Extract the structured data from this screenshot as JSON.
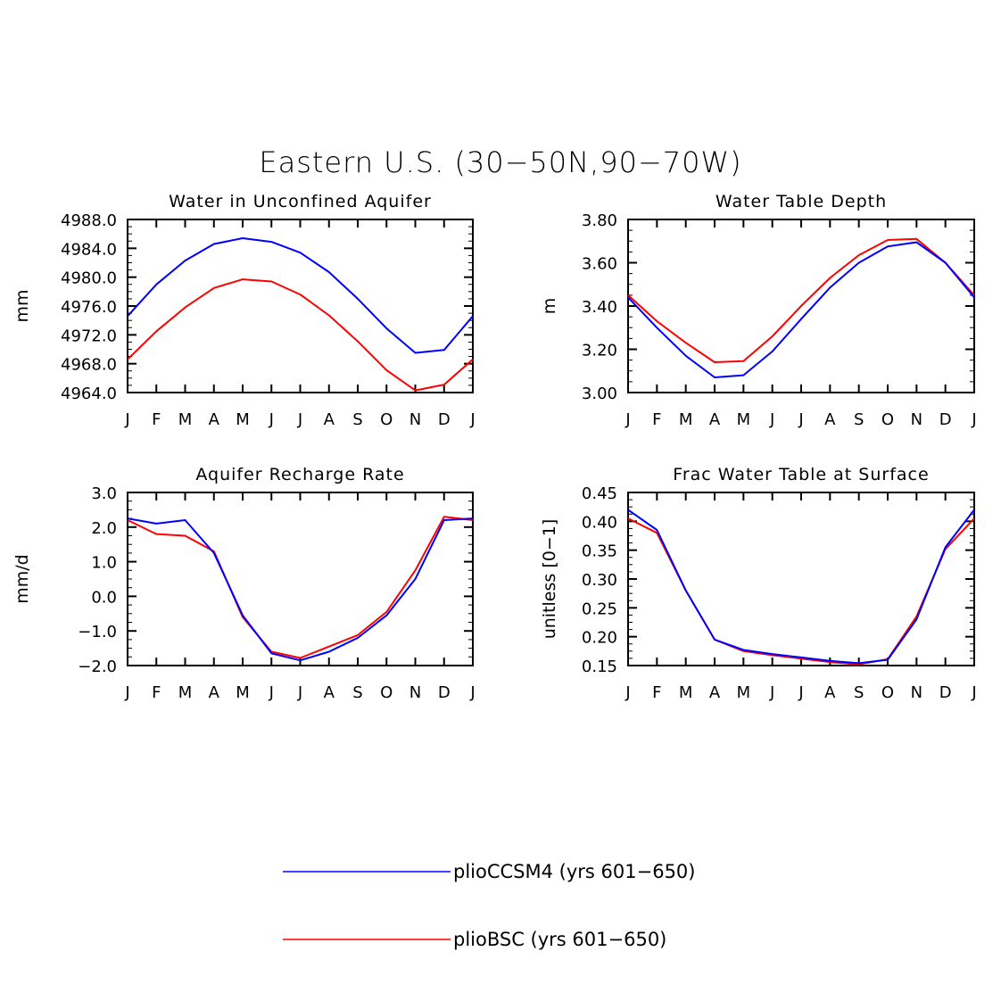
{
  "figure_title": "Eastern U.S. (30−50N,90−70W)",
  "colors": {
    "pliocCSM4": "#0000ff",
    "plioBSC": "#ff0000",
    "axes": "#000000"
  },
  "legend": [
    {
      "label": "plioCCSM4 (yrs 601−650)",
      "color": "#0000ff"
    },
    {
      "label": "plioBSC (yrs 601−650)",
      "color": "#ff0000"
    }
  ],
  "chart_data": [
    {
      "type": "line",
      "title": "Water in Unconfined Aquifer",
      "xlabel": "",
      "ylabel": "mm",
      "categories": [
        "J",
        "F",
        "M",
        "A",
        "M",
        "J",
        "J",
        "A",
        "S",
        "O",
        "N",
        "D",
        "J"
      ],
      "ylim": [
        4964.0,
        4988.0
      ],
      "yticks": [
        "4964.0",
        "4968.0",
        "4972.0",
        "4976.0",
        "4980.0",
        "4984.0",
        "4988.0"
      ],
      "ytick_values": [
        4964,
        4968,
        4972,
        4976,
        4980,
        4984,
        4988
      ],
      "series": [
        {
          "name": "plioCCSM4 (yrs 601−650)",
          "color": "#0000ff",
          "values": [
            4974.6,
            4979.0,
            4982.3,
            4984.6,
            4985.4,
            4984.9,
            4983.4,
            4980.7,
            4977.0,
            4972.9,
            4969.5,
            4969.9,
            4974.6
          ]
        },
        {
          "name": "plioBSC (yrs 601−650)",
          "color": "#ff0000",
          "values": [
            4968.6,
            4972.5,
            4975.8,
            4978.5,
            4979.7,
            4979.4,
            4977.6,
            4974.7,
            4971.1,
            4967.1,
            4964.3,
            4965.1,
            4968.6
          ]
        }
      ]
    },
    {
      "type": "line",
      "title": "Water Table Depth",
      "xlabel": "",
      "ylabel": "m",
      "categories": [
        "J",
        "F",
        "M",
        "A",
        "M",
        "J",
        "J",
        "A",
        "S",
        "O",
        "N",
        "D",
        "J"
      ],
      "ylim": [
        3.0,
        3.8
      ],
      "yticks": [
        "3.00",
        "3.20",
        "3.40",
        "3.60",
        "3.80"
      ],
      "ytick_values": [
        3.0,
        3.2,
        3.4,
        3.6,
        3.8
      ],
      "series": [
        {
          "name": "plioCCSM4 (yrs 601−650)",
          "color": "#0000ff",
          "values": [
            3.44,
            3.3,
            3.17,
            3.07,
            3.08,
            3.19,
            3.34,
            3.485,
            3.6,
            3.675,
            3.695,
            3.6,
            3.44
          ]
        },
        {
          "name": "plioBSC (yrs 601−650)",
          "color": "#ff0000",
          "values": [
            3.45,
            3.33,
            3.23,
            3.14,
            3.145,
            3.26,
            3.4,
            3.53,
            3.635,
            3.705,
            3.71,
            3.6,
            3.45
          ]
        }
      ]
    },
    {
      "type": "line",
      "title": "Aquifer Recharge Rate",
      "xlabel": "",
      "ylabel": "mm/d",
      "categories": [
        "J",
        "F",
        "M",
        "A",
        "M",
        "J",
        "J",
        "A",
        "S",
        "O",
        "N",
        "D",
        "J"
      ],
      "ylim": [
        -2.0,
        3.0
      ],
      "yticks": [
        "−2.0",
        "−1.0",
        "0.0",
        "1.0",
        "2.0",
        "3.0"
      ],
      "ytick_values": [
        -2,
        -1,
        0,
        1,
        2,
        3
      ],
      "series": [
        {
          "name": "plioCCSM4 (yrs 601−650)",
          "color": "#0000ff",
          "values": [
            2.25,
            2.1,
            2.2,
            1.25,
            -0.55,
            -1.65,
            -1.85,
            -1.6,
            -1.2,
            -0.55,
            0.5,
            2.2,
            2.25
          ]
        },
        {
          "name": "plioBSC (yrs 601−650)",
          "color": "#ff0000",
          "values": [
            2.2,
            1.8,
            1.75,
            1.3,
            -0.6,
            -1.6,
            -1.78,
            -1.45,
            -1.12,
            -0.45,
            0.75,
            2.3,
            2.2
          ]
        }
      ]
    },
    {
      "type": "line",
      "title": "Frac Water Table at Surface",
      "xlabel": "",
      "ylabel": "unitless [0−1]",
      "categories": [
        "J",
        "F",
        "M",
        "A",
        "M",
        "J",
        "J",
        "A",
        "S",
        "O",
        "N",
        "D",
        "J"
      ],
      "ylim": [
        0.15,
        0.45
      ],
      "yticks": [
        "0.15",
        "0.20",
        "0.25",
        "0.30",
        "0.35",
        "0.40",
        "0.45"
      ],
      "ytick_values": [
        0.15,
        0.2,
        0.25,
        0.3,
        0.35,
        0.4,
        0.45
      ],
      "series": [
        {
          "name": "plioCCSM4 (yrs 601−650)",
          "color": "#0000ff",
          "values": [
            0.42,
            0.385,
            0.28,
            0.195,
            0.177,
            0.17,
            0.164,
            0.158,
            0.154,
            0.16,
            0.23,
            0.355,
            0.42
          ]
        },
        {
          "name": "plioBSC (yrs 601−650)",
          "color": "#ff0000",
          "values": [
            0.405,
            0.38,
            0.28,
            0.195,
            0.175,
            0.168,
            0.162,
            0.156,
            0.152,
            0.161,
            0.235,
            0.352,
            0.405
          ]
        }
      ]
    }
  ]
}
